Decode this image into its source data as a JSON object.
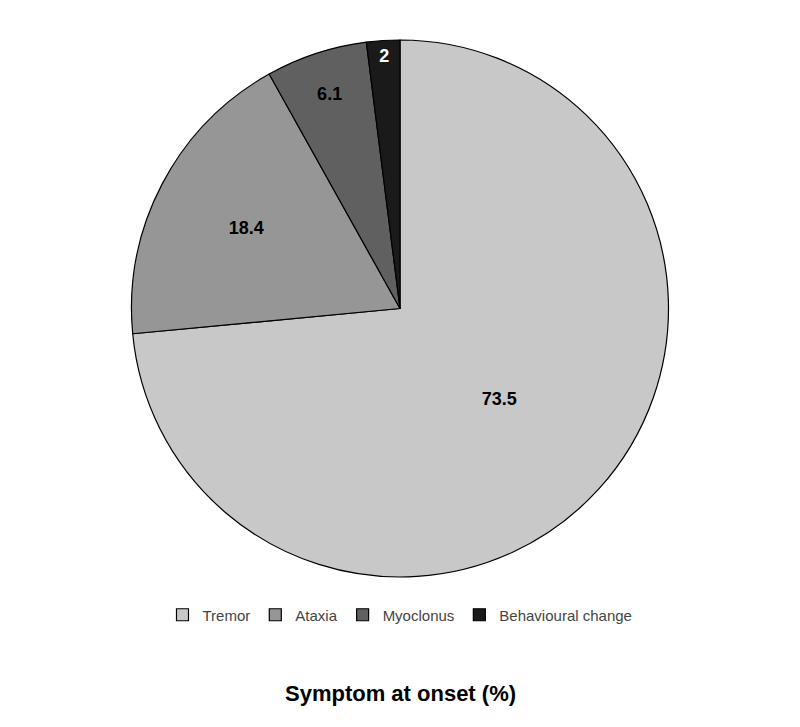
{
  "chart_data": {
    "type": "pie",
    "title": "Symptom at onset (%)",
    "categories": [
      "Tremor",
      "Ataxia",
      "Myoclonus",
      "Behavioural change"
    ],
    "values": [
      73.5,
      18.4,
      6.1,
      2
    ],
    "colors": [
      "#c8c8c8",
      "#969696",
      "#606060",
      "#1a1a1a"
    ],
    "data_labels": true,
    "legend": "bottom"
  }
}
